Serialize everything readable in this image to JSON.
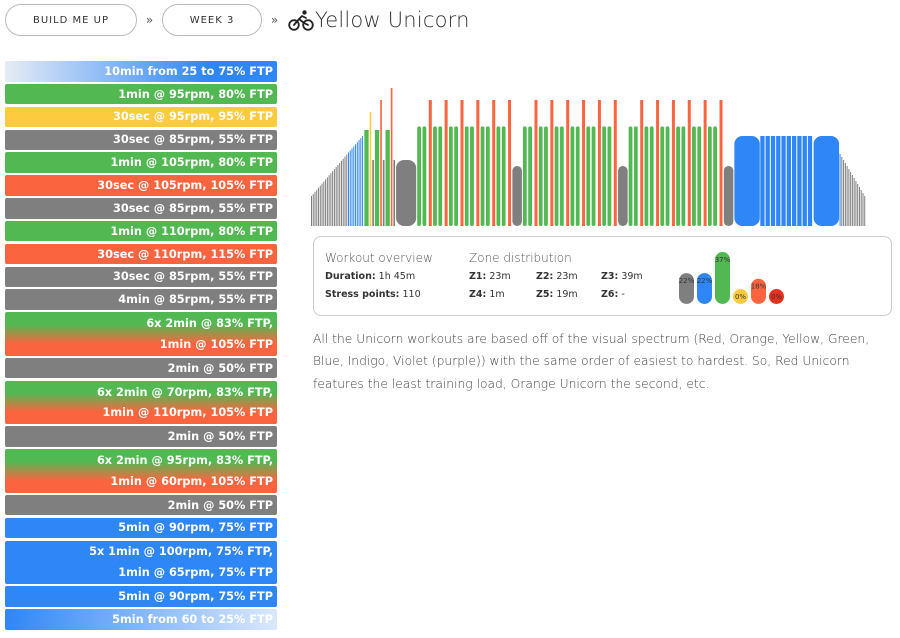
{
  "breadcrumb": {
    "plan_label": "BUILD ME UP",
    "week_label": "WEEK 3",
    "separator": "»",
    "workout_title": "Yellow Unicorn",
    "title_icon": "cyclist-icon"
  },
  "colors": {
    "grey": "#7f7f7f",
    "blue": "#2f86f6",
    "green": "#52b852",
    "yellow": "#fdcb3e",
    "orange": "#fa6540",
    "red": "#e8321f"
  },
  "steps": [
    {
      "lines": [
        "10min from 25 to 75% FTP"
      ],
      "style": "ramp-up"
    },
    {
      "lines": [
        "1min @ 95rpm, 80% FTP"
      ],
      "style": "green"
    },
    {
      "lines": [
        "30sec @ 95rpm, 95% FTP"
      ],
      "style": "yellow"
    },
    {
      "lines": [
        "30sec @ 85rpm, 55% FTP"
      ],
      "style": "grey"
    },
    {
      "lines": [
        "1min @ 105rpm, 80% FTP"
      ],
      "style": "green"
    },
    {
      "lines": [
        "30sec @ 105rpm, 105% FTP"
      ],
      "style": "orange"
    },
    {
      "lines": [
        "30sec @ 85rpm, 55% FTP"
      ],
      "style": "grey"
    },
    {
      "lines": [
        "1min @ 110rpm, 80% FTP"
      ],
      "style": "green"
    },
    {
      "lines": [
        "30sec @ 110rpm, 115% FTP"
      ],
      "style": "orange"
    },
    {
      "lines": [
        "30sec @ 85rpm, 55% FTP"
      ],
      "style": "grey"
    },
    {
      "lines": [
        "4min @ 85rpm, 55% FTP"
      ],
      "style": "grey"
    },
    {
      "lines": [
        "6x 2min @ 83% FTP,",
        "1min @ 105% FTP"
      ],
      "style": "green-orange"
    },
    {
      "lines": [
        "2min @ 50% FTP"
      ],
      "style": "grey"
    },
    {
      "lines": [
        "6x 2min @ 70rpm, 83% FTP,",
        "1min @ 110rpm, 105% FTP"
      ],
      "style": "green-orange"
    },
    {
      "lines": [
        "2min @ 50% FTP"
      ],
      "style": "grey"
    },
    {
      "lines": [
        "6x 2min @ 95rpm, 83% FTP,",
        "1min @ 60rpm, 105% FTP"
      ],
      "style": "green-orange"
    },
    {
      "lines": [
        "2min @ 50% FTP"
      ],
      "style": "grey"
    },
    {
      "lines": [
        "5min @ 90rpm, 75% FTP"
      ],
      "style": "blue"
    },
    {
      "lines": [
        "5x 1min @ 100rpm, 75% FTP,",
        "1min @ 65rpm, 75% FTP"
      ],
      "style": "blue"
    },
    {
      "lines": [
        "5min @ 90rpm, 75% FTP"
      ],
      "style": "blue"
    },
    {
      "lines": [
        "5min from 60 to 25% FTP"
      ],
      "style": "ramp-down"
    }
  ],
  "overview": {
    "heading": "Workout overview",
    "duration_label": "Duration:",
    "duration_value": "1h 45m",
    "stress_label": "Stress points:",
    "stress_value": "110"
  },
  "zones": {
    "heading": "Zone distribution",
    "items": [
      {
        "label": "Z1:",
        "value": "23m"
      },
      {
        "label": "Z2:",
        "value": "23m"
      },
      {
        "label": "Z3:",
        "value": "39m"
      },
      {
        "label": "Z4:",
        "value": "1m"
      },
      {
        "label": "Z5:",
        "value": "19m"
      },
      {
        "label": "Z6:",
        "value": "-"
      }
    ],
    "bars": [
      {
        "pct": 22,
        "label": "22%",
        "color": "#7f7f7f"
      },
      {
        "pct": 22,
        "label": "22%",
        "color": "#2f86f6"
      },
      {
        "pct": 37,
        "label": "37%",
        "color": "#52b852"
      },
      {
        "pct": 0,
        "label": "0%",
        "color": "#fdcb3e"
      },
      {
        "pct": 18,
        "label": "18%",
        "color": "#fa6540"
      },
      {
        "pct": 0,
        "label": "0%",
        "color": "#e8321f"
      }
    ]
  },
  "description": "All the Unicorn workouts are based off of the visual spectrum (Red, Orange, Yellow, Green, Blue, Indigo, Violet (purple)) with the same order of easiest to hardest. So, Red Unicorn features the least training load, Orange Unicorn the second, etc.",
  "chart_data": {
    "type": "bar",
    "title": "",
    "xlabel": "",
    "ylabel": "",
    "x_unit": "minutes",
    "y_unit": "% FTP",
    "ylim": [
      0,
      140
    ],
    "segments": [
      {
        "start": 0,
        "duration": 10,
        "ftp_from": 25,
        "ftp_to": 75,
        "zone": "ramp"
      },
      {
        "start": 10,
        "duration": 1,
        "ftp": 80,
        "zone": "green"
      },
      {
        "start": 11,
        "duration": 0.5,
        "ftp": 95,
        "zone": "yellow"
      },
      {
        "start": 11.5,
        "duration": 0.5,
        "ftp": 55,
        "zone": "grey"
      },
      {
        "start": 12,
        "duration": 1,
        "ftp": 80,
        "zone": "green"
      },
      {
        "start": 13,
        "duration": 0.5,
        "ftp": 105,
        "zone": "orange"
      },
      {
        "start": 13.5,
        "duration": 0.5,
        "ftp": 55,
        "zone": "grey"
      },
      {
        "start": 14,
        "duration": 1,
        "ftp": 80,
        "zone": "green"
      },
      {
        "start": 15,
        "duration": 0.5,
        "ftp": 115,
        "zone": "orange"
      },
      {
        "start": 15.5,
        "duration": 0.5,
        "ftp": 55,
        "zone": "grey"
      },
      {
        "start": 16,
        "duration": 4,
        "ftp": 55,
        "zone": "grey"
      },
      {
        "start": 20,
        "duration": 18,
        "ftp_work": 83,
        "ftp_rest": 105,
        "reps": 6,
        "zone": "green-orange"
      },
      {
        "start": 38,
        "duration": 2,
        "ftp": 50,
        "zone": "grey"
      },
      {
        "start": 40,
        "duration": 18,
        "ftp_work": 83,
        "ftp_rest": 105,
        "reps": 6,
        "zone": "green-orange"
      },
      {
        "start": 58,
        "duration": 2,
        "ftp": 50,
        "zone": "grey"
      },
      {
        "start": 60,
        "duration": 18,
        "ftp_work": 83,
        "ftp_rest": 105,
        "reps": 6,
        "zone": "green-orange"
      },
      {
        "start": 78,
        "duration": 2,
        "ftp": 50,
        "zone": "grey"
      },
      {
        "start": 80,
        "duration": 5,
        "ftp": 75,
        "zone": "blue"
      },
      {
        "start": 85,
        "duration": 10,
        "ftp": 75,
        "reps": 5,
        "zone": "blue"
      },
      {
        "start": 95,
        "duration": 5,
        "ftp": 75,
        "zone": "blue"
      },
      {
        "start": 100,
        "duration": 5,
        "ftp_from": 60,
        "ftp_to": 25,
        "zone": "ramp"
      }
    ]
  }
}
